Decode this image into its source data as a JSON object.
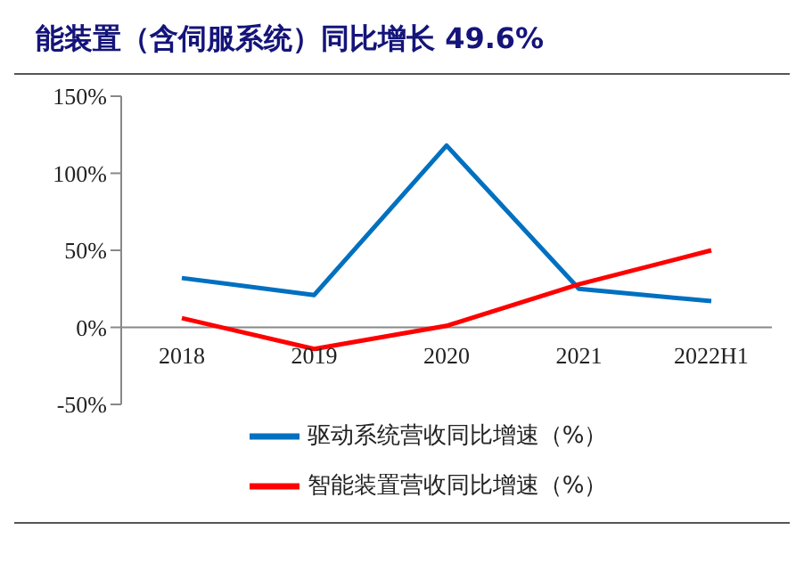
{
  "chart_data": {
    "type": "line",
    "title": "能装置（含伺服系统）同比增长 49.6%",
    "categories": [
      "2018",
      "2019",
      "2020",
      "2021",
      "2022H1"
    ],
    "series": [
      {
        "name": "驱动系统营收同比增速（%）",
        "color": "#0070c0",
        "values": [
          32,
          21,
          118,
          25,
          17
        ]
      },
      {
        "name": "智能装置营收同比增速（%）",
        "color": "#ff0000",
        "values": [
          6,
          -14,
          1,
          28,
          50
        ]
      }
    ],
    "ylim": [
      -50,
      150
    ],
    "yticks": [
      {
        "value": -50,
        "label": "-50%"
      },
      {
        "value": 0,
        "label": "0%"
      },
      {
        "value": 50,
        "label": "50%"
      },
      {
        "value": 100,
        "label": "100%"
      },
      {
        "value": 150,
        "label": "150%"
      }
    ],
    "legend": "bottom",
    "marker": "none",
    "line_style": "solid"
  }
}
